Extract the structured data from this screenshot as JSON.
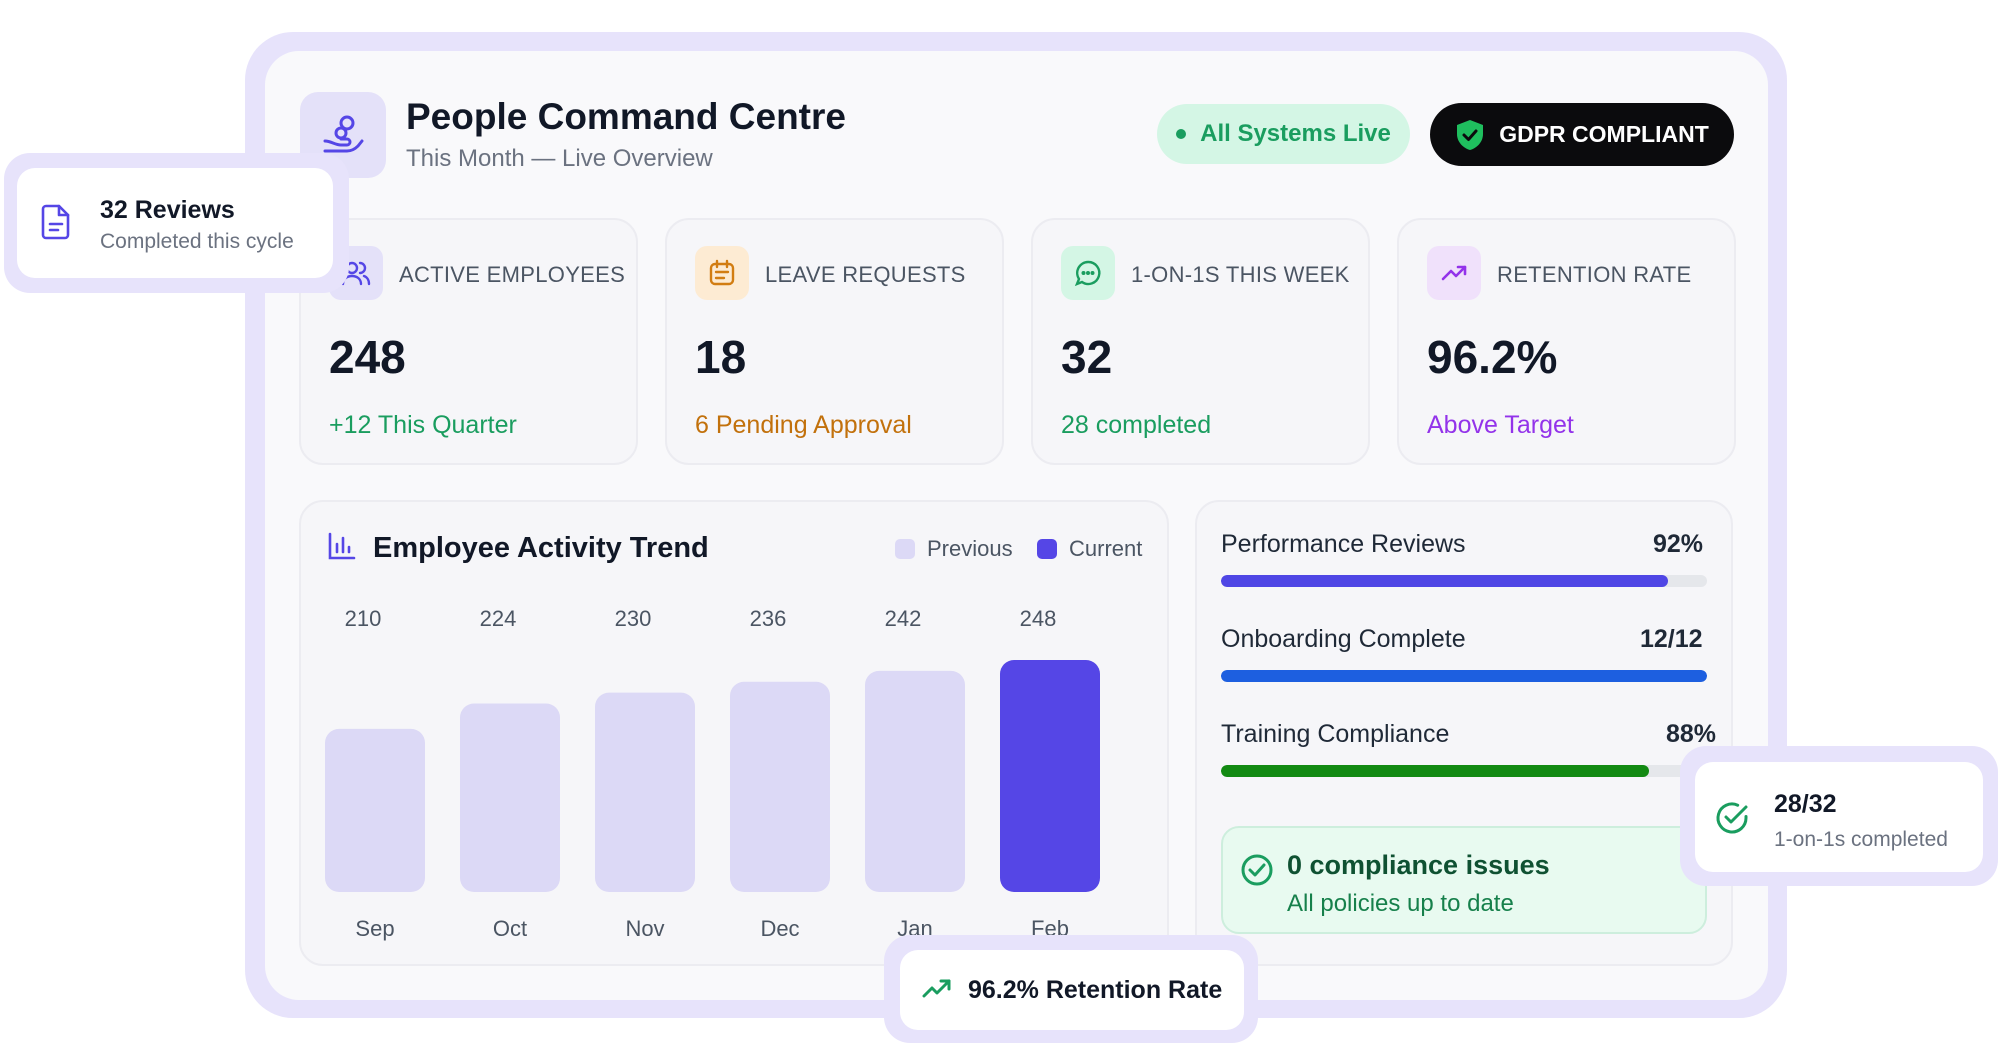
{
  "header": {
    "title": "People Command Centre",
    "subtitle": "This Month — Live Overview",
    "status_pill": "All Systems Live",
    "compliance_pill": "GDPR COMPLIANT"
  },
  "stats": [
    {
      "label": "ACTIVE EMPLOYEES",
      "value": "248",
      "delta": "+12 This Quarter",
      "icon": "users-icon",
      "accent": "#1a9d5f"
    },
    {
      "label": "LEAVE REQUESTS",
      "value": "18",
      "delta": "6 Pending Approval",
      "icon": "calendar-icon",
      "accent": "#c2710c"
    },
    {
      "label": "1-ON-1S THIS WEEK",
      "value": "32",
      "delta": "28 completed",
      "icon": "chat-icon",
      "accent": "#1a9d5f"
    },
    {
      "label": "RETENTION RATE",
      "value": "96.2%",
      "delta": "Above Target",
      "icon": "trending-up-icon",
      "accent": "#9333ea"
    }
  ],
  "chart": {
    "title": "Employee Activity Trend",
    "legend_previous": "Previous",
    "legend_current": "Current"
  },
  "chart_data": {
    "type": "bar",
    "title": "Employee Activity Trend",
    "categories": [
      "Sep",
      "Oct",
      "Nov",
      "Dec",
      "Jan",
      "Feb"
    ],
    "series": [
      {
        "name": "Previous",
        "values": [
          210,
          224,
          230,
          236,
          242,
          null
        ]
      },
      {
        "name": "Current",
        "values": [
          null,
          null,
          null,
          null,
          null,
          248
        ]
      }
    ],
    "value_labels": [
      "210",
      "224",
      "230",
      "236",
      "242",
      "248"
    ],
    "colors": {
      "previous": "#dcd9f6",
      "current": "#5546e6"
    },
    "legend_position": "top-right",
    "grid": false
  },
  "progress": [
    {
      "label": "Performance Reviews",
      "value_text": "92%",
      "fraction": 0.92,
      "color": "#4f46e5"
    },
    {
      "label": "Onboarding Complete",
      "value_text": "12/12",
      "fraction": 1.0,
      "color": "#1d5fe0"
    },
    {
      "label": "Training Compliance",
      "value_text": "88%",
      "fraction": 0.88,
      "color": "#138a13"
    }
  ],
  "compliance_box": {
    "title": "0 compliance issues",
    "subtitle": "All policies up to date"
  },
  "callouts": {
    "reviews_title": "32 Reviews",
    "reviews_sub": "Completed this cycle",
    "ones_title": "28/32",
    "ones_sub": "1-on-1s completed",
    "retention": "96.2% Retention Rate"
  },
  "colors": {
    "accent": "#5546e6",
    "frame": "#e7e3fb",
    "live_bg": "#d4f6e5",
    "live_text": "#1a9d5f"
  }
}
